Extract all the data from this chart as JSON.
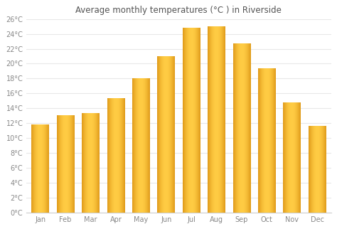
{
  "title": "Average monthly temperatures (°C ) in Riverside",
  "months": [
    "Jan",
    "Feb",
    "Mar",
    "Apr",
    "May",
    "Jun",
    "Jul",
    "Aug",
    "Sep",
    "Oct",
    "Nov",
    "Dec"
  ],
  "values": [
    11.8,
    13.0,
    13.3,
    15.3,
    18.0,
    21.0,
    24.8,
    25.0,
    22.7,
    19.3,
    14.8,
    11.6
  ],
  "bar_color_main": "#FDB913",
  "bar_color_left": "#E8960A",
  "bar_color_right": "#E8960A",
  "background_color": "#ffffff",
  "grid_color": "#e8e8e8",
  "ylim": [
    0,
    26
  ],
  "ytick_step": 2,
  "title_fontsize": 8.5,
  "tick_fontsize": 7,
  "bar_width": 0.7
}
